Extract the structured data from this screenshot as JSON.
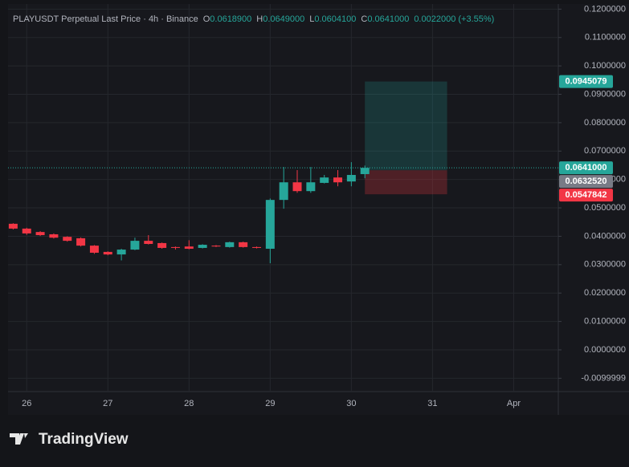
{
  "chart_data": {
    "type": "candlestick",
    "title": "PLAYUSDT Perpetual Last Price · 4h · Binance",
    "legend": [
      "O",
      "0.0618900",
      "H",
      "0.0649000",
      "L",
      "0.0604100",
      "C",
      "0.0641000",
      "0.0022000 (+3.55%)"
    ],
    "up_color": "#26a69a",
    "down_color": "#f23645",
    "grid": true,
    "xlim": [
      25.77,
      32.55
    ],
    "xticks": [
      {
        "value": 26,
        "label": "26"
      },
      {
        "value": 27,
        "label": "27"
      },
      {
        "value": 28,
        "label": "28"
      },
      {
        "value": 29,
        "label": "29"
      },
      {
        "value": 30,
        "label": "30"
      },
      {
        "value": 31,
        "label": "31"
      },
      {
        "value": 32,
        "label": "Apr"
      }
    ],
    "ylim": [
      -0.0147,
      0.1218
    ],
    "yticks": [
      {
        "value": 0.12,
        "label": "0.1200000"
      },
      {
        "value": 0.11,
        "label": "0.1100000"
      },
      {
        "value": 0.1,
        "label": "0.1000000"
      },
      {
        "value": 0.09,
        "label": "0.0900000"
      },
      {
        "value": 0.08,
        "label": "0.0800000"
      },
      {
        "value": 0.07,
        "label": "0.0700000"
      },
      {
        "value": 0.06,
        "label": "0.0600000"
      },
      {
        "value": 0.05,
        "label": "0.0500000"
      },
      {
        "value": 0.04,
        "label": "0.0400000"
      },
      {
        "value": 0.03,
        "label": "0.0300000"
      },
      {
        "value": 0.02,
        "label": "0.0200000"
      },
      {
        "value": 0.01,
        "label": "0.0100000"
      },
      {
        "value": 0,
        "label": "0.0000000"
      },
      {
        "value": -0.0099999,
        "label": "-0.0099999"
      }
    ],
    "x": [
      25.8333,
      26.0,
      26.1667,
      26.3333,
      26.5,
      26.6667,
      26.8333,
      27.0,
      27.1667,
      27.3333,
      27.5,
      27.6667,
      27.8333,
      28.0,
      28.1667,
      28.3333,
      28.5,
      28.6667,
      28.8333,
      29.0,
      29.1667,
      29.3333,
      29.5,
      29.6667,
      29.8333,
      30.0,
      30.1667
    ],
    "open": [
      0.0444,
      0.0427,
      0.0415,
      0.0407,
      0.0398,
      0.0393,
      0.0367,
      0.0345,
      0.0336,
      0.0353,
      0.0384,
      0.0376,
      0.0362,
      0.0364,
      0.0359,
      0.0367,
      0.0362,
      0.0379,
      0.0362,
      0.0356,
      0.0528,
      0.059,
      0.0559,
      0.0588,
      0.0607,
      0.0593,
      0.06189
    ],
    "high": [
      0.0446,
      0.043,
      0.0418,
      0.041,
      0.04,
      0.0396,
      0.0369,
      0.0347,
      0.0356,
      0.0395,
      0.0404,
      0.0378,
      0.0364,
      0.0386,
      0.0372,
      0.0369,
      0.0381,
      0.0381,
      0.0364,
      0.0533,
      0.0644,
      0.0633,
      0.0644,
      0.0616,
      0.0633,
      0.0661,
      0.0649
    ],
    "low": [
      0.0424,
      0.0405,
      0.0401,
      0.0392,
      0.0381,
      0.0364,
      0.0338,
      0.0333,
      0.0315,
      0.0351,
      0.0371,
      0.0356,
      0.0353,
      0.0354,
      0.0357,
      0.0362,
      0.036,
      0.036,
      0.0357,
      0.0305,
      0.0497,
      0.0553,
      0.0553,
      0.0586,
      0.0576,
      0.0576,
      0.06041
    ],
    "close": [
      0.0427,
      0.041,
      0.0404,
      0.0395,
      0.0384,
      0.0367,
      0.0342,
      0.0336,
      0.0353,
      0.0384,
      0.0373,
      0.0359,
      0.0359,
      0.0356,
      0.037,
      0.0364,
      0.0379,
      0.0362,
      0.0359,
      0.0528,
      0.059,
      0.0559,
      0.059,
      0.0607,
      0.059,
      0.0616,
      0.0641
    ],
    "last_price": {
      "value": 0.0641,
      "label": "0.0641000"
    },
    "position": {
      "start": 30.1667,
      "end": 31.18,
      "target": {
        "value": 0.0945079,
        "label": "0.0945079"
      },
      "entry": {
        "value": 0.063252,
        "label": "0.0632520"
      },
      "stop": {
        "value": 0.0547842,
        "label": "0.0547842"
      }
    },
    "brand": "TradingView"
  }
}
